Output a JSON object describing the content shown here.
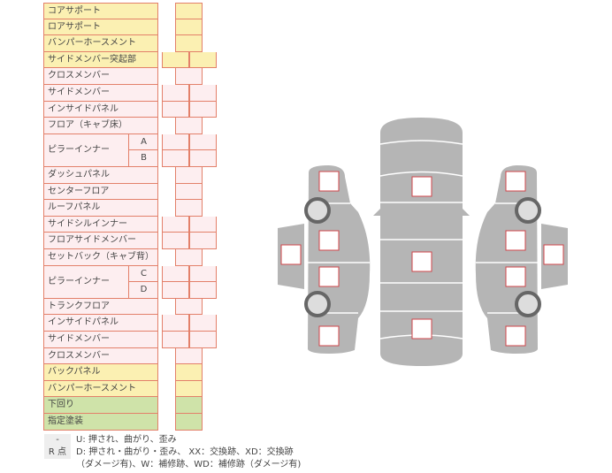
{
  "rows": [
    {
      "label": "コアサポート",
      "color": "yellow",
      "cols": 1
    },
    {
      "label": "ロアサポート",
      "color": "yellow",
      "cols": 1
    },
    {
      "label": "バンパーホースメント",
      "color": "yellow",
      "cols": 1
    },
    {
      "label": "サイドメンバー突起部",
      "color": "yellow",
      "cols": 2
    },
    {
      "label": "クロスメンバー",
      "color": "pink",
      "cols": 1
    },
    {
      "label": "サイドメンバー",
      "color": "pink",
      "cols": 2
    },
    {
      "label": "インサイドパネル",
      "color": "pink",
      "cols": 2
    },
    {
      "label": "フロア（キャブ床）",
      "color": "pink",
      "cols": 1
    },
    {
      "label": "ピラーインナー",
      "color": "pink",
      "cols": 2,
      "subs": [
        "A",
        "B"
      ]
    },
    {
      "label": "ダッシュパネル",
      "color": "pink",
      "cols": 1
    },
    {
      "label": "センターフロア",
      "color": "pink",
      "cols": 1
    },
    {
      "label": "ルーフパネル",
      "color": "pink",
      "cols": 1
    },
    {
      "label": "サイドシルインナー",
      "color": "pink",
      "cols": 2
    },
    {
      "label": "フロアサイドメンバー",
      "color": "pink",
      "cols": 2
    },
    {
      "label": "セットバック（キャブ背）",
      "color": "pink",
      "cols": 1
    },
    {
      "label": "ピラーインナー",
      "color": "pink",
      "cols": 2,
      "subs": [
        "C",
        "D"
      ]
    },
    {
      "label": "トランクフロア",
      "color": "pink",
      "cols": 1
    },
    {
      "label": "インサイドパネル",
      "color": "pink",
      "cols": 2
    },
    {
      "label": "サイドメンバー",
      "color": "pink",
      "cols": 2
    },
    {
      "label": "クロスメンバー",
      "color": "pink",
      "cols": 1
    },
    {
      "label": "バックパネル",
      "color": "yellow",
      "cols": 1
    },
    {
      "label": "バンパーホースメント",
      "color": "yellow",
      "cols": 1
    },
    {
      "label": "下回り",
      "color": "green",
      "cols": 1
    },
    {
      "label": "指定塗装",
      "color": "green",
      "cols": 1
    }
  ],
  "legend": {
    "key1": "-",
    "text1": "U: 押され、曲がり、歪み",
    "key2": "R 点",
    "text2": "D: 押され・曲がり・歪み、 XX：交換跡、XD：交換跡",
    "text3": "（ダメージ有)、W：補修跡、WD：補修跡（ダメージ有)"
  },
  "colors": {
    "yellow": "#fbf0b2",
    "pink": "#fdeef0",
    "green": "#cfe3a9",
    "border": "#e3806a",
    "body": "#b5b5b5",
    "marker": "#d0454a"
  }
}
